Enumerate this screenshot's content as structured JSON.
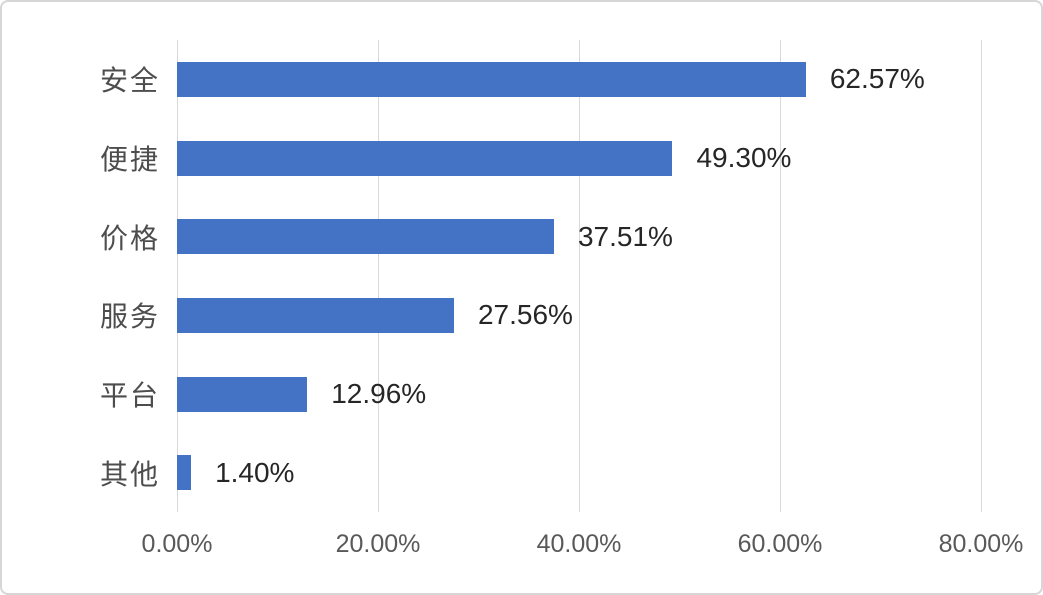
{
  "chart_data": {
    "type": "bar",
    "orientation": "horizontal",
    "categories": [
      "安全",
      "便捷",
      "价格",
      "服务",
      "平台",
      "其他"
    ],
    "values": [
      62.57,
      49.3,
      37.51,
      27.56,
      12.96,
      1.4
    ],
    "data_labels": [
      "62.57%",
      "49.30%",
      "37.51%",
      "27.56%",
      "12.96%",
      "1.40%"
    ],
    "title": "",
    "xlabel": "",
    "ylabel": "",
    "xlim": [
      0,
      80
    ],
    "x_tick_values": [
      0,
      20,
      40,
      60,
      80
    ],
    "x_tick_labels": [
      "0.00%",
      "20.00%",
      "40.00%",
      "60.00%",
      "80.00%"
    ],
    "grid": "vertical-gridlines-on",
    "legend": "none",
    "bar_color": "#4472c4",
    "gridline_color": "#d9d9d9",
    "category_label_color": "#4d4d4d",
    "data_label_color": "#262626",
    "tick_label_color": "#595959"
  }
}
